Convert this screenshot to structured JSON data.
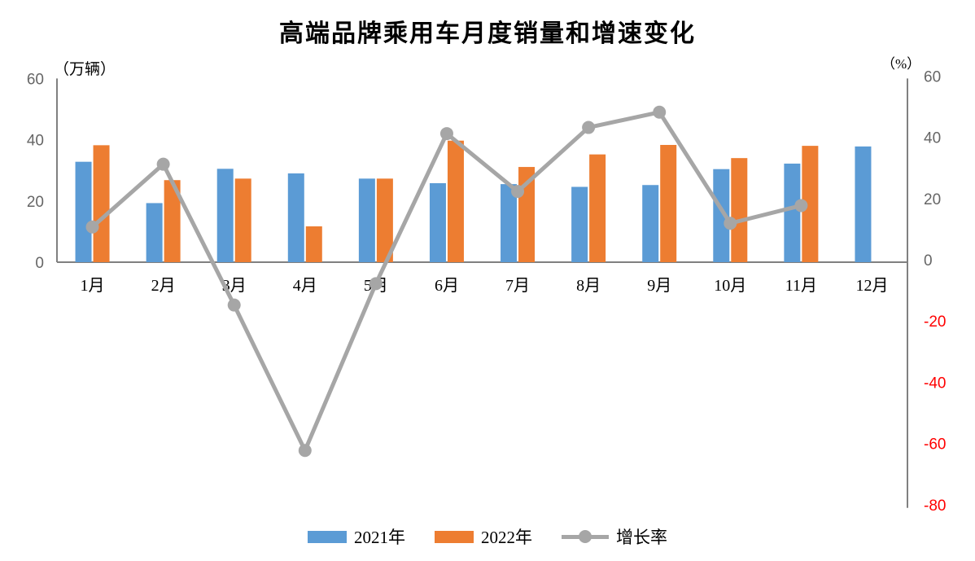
{
  "title": "高端品牌乘用车月度销量和增速变化",
  "chart_data": {
    "type": "bar+line combo",
    "title": "高端品牌乘用车月度销量和增速变化",
    "categories": [
      "1月",
      "2月",
      "3月",
      "4月",
      "5月",
      "6月",
      "7月",
      "8月",
      "9月",
      "10月",
      "11月",
      "12月"
    ],
    "series": [
      {
        "name": "2021年",
        "type": "bar",
        "axis": "left",
        "color": "#5B9BD5",
        "values": [
          32.8,
          19.3,
          30.5,
          29.0,
          27.3,
          25.8,
          25.5,
          24.6,
          25.2,
          30.4,
          32.2,
          37.8
        ]
      },
      {
        "name": "2022年",
        "type": "bar",
        "axis": "left",
        "color": "#ED7D31",
        "values": [
          38.2,
          26.8,
          27.3,
          11.7,
          27.3,
          39.7,
          31.1,
          35.2,
          38.3,
          34.0,
          38.0,
          null
        ]
      },
      {
        "name": "增长率",
        "type": "line",
        "axis": "right",
        "color": "#A6A6A6",
        "values": [
          11.5,
          32.0,
          -14.0,
          -61.5,
          -7.0,
          42.0,
          23.1,
          44.0,
          49.0,
          12.7,
          18.5,
          null
        ]
      }
    ],
    "left_axis": {
      "unit": "（万辆）",
      "min": 0,
      "max": 60,
      "step": 20,
      "ticks": [
        0,
        20,
        40,
        60
      ]
    },
    "right_axis": {
      "unit": "（%）",
      "min": -80,
      "max": 60,
      "step": 20,
      "ticks": [
        60,
        40,
        20,
        0,
        -20,
        -40,
        -60,
        -80
      ]
    },
    "xlabel": "",
    "grid": "off",
    "legend_position": "bottom",
    "colors": {
      "axis_line": "#808080",
      "tick_text": "#666666",
      "negative_tick_text": "#FF0000",
      "category_text": "#000000",
      "title_text": "#000000"
    }
  }
}
